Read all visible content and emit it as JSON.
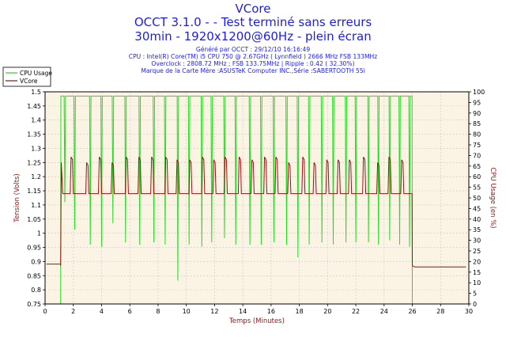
{
  "header": {
    "title": "VCore",
    "subtitle1": "OCCT 3.1.0 -  - Test terminé sans erreurs",
    "subtitle2": "30min - 1920x1200@60Hz - plein écran",
    "info1": "Généré par OCCT : 29/12/10 16:16:49",
    "info2": "CPU : Intel(R) Core(TM) i5 CPU 750 @ 2.67GHz ( Lynnfield ) 2666 MHz FSB 133MHz",
    "info3": "Overclock : 2808.72 MHz ; FSB 133.75MHz | Ripple : 0.42 ( 32.30%)",
    "info4": "Marque de la Carte Mère :ASUSTeK Computer INC.,Série :SABERTOOTH 55i"
  },
  "colors": {
    "cpu": "#22dd22",
    "vcore": "#991111",
    "plot_bg": "#fbf4e4",
    "grid": "#c8c8c8",
    "title": "#1a1aff",
    "axis_label": "#a01414"
  },
  "chart_data": {
    "type": "line",
    "xlabel": "Temps (Minutes)",
    "ylabel": "Tension (Volts)",
    "y2label": "CPU Usage (en %)",
    "xlim": [
      0,
      30
    ],
    "ylim": [
      0.75,
      1.5
    ],
    "y2lim": [
      0,
      100
    ],
    "x_ticks": [
      "0",
      "2",
      "4",
      "6",
      "8",
      "10",
      "12",
      "14",
      "16",
      "18",
      "20",
      "22",
      "24",
      "26",
      "28",
      "30"
    ],
    "y_ticks": [
      "0.75",
      "0.8",
      "0.85",
      "0.9",
      "0.95",
      "1",
      "1.05",
      "1.1",
      "1.15",
      "1.2",
      "1.25",
      "1.3",
      "1.35",
      "1.4",
      "1.45",
      "1.5"
    ],
    "y2_ticks": [
      "0",
      "5",
      "10",
      "15",
      "20",
      "25",
      "30",
      "35",
      "40",
      "45",
      "50",
      "55",
      "60",
      "65",
      "70",
      "75",
      "80",
      "85",
      "90",
      "95",
      "100"
    ],
    "grid": true,
    "legend_position": "top-left",
    "series": [
      {
        "name": "CPU Usage",
        "axis": "right",
        "baseline": 98,
        "idle_value": 0,
        "active_range": [
          1.1,
          26.0
        ],
        "dips_minutes": [
          1.4,
          2.1,
          3.2,
          4.0,
          4.8,
          5.7,
          6.7,
          7.7,
          8.5,
          9.4,
          10.2,
          11.1,
          11.8,
          12.7,
          13.5,
          14.5,
          15.3,
          16.2,
          17.1,
          17.9,
          18.7,
          19.6,
          20.4,
          21.3,
          22.0,
          22.9,
          23.6,
          24.4,
          25.1,
          25.8
        ],
        "dips_values": [
          48,
          35,
          28,
          27,
          38,
          29,
          28,
          29,
          28,
          11,
          28,
          27,
          29,
          31,
          28,
          28,
          28,
          29,
          28,
          22,
          28,
          29,
          28,
          29,
          29,
          29,
          28,
          30,
          28,
          27
        ]
      },
      {
        "name": "VCore",
        "axis": "left",
        "idle_value": 0.885,
        "load_value": 1.14,
        "active_range": [
          1.1,
          26.0
        ],
        "spike_minutes": [
          1.9,
          3.0,
          3.9,
          4.8,
          5.8,
          6.7,
          7.6,
          8.6,
          9.4,
          10.3,
          11.2,
          12.0,
          12.8,
          13.8,
          14.7,
          15.6,
          16.4,
          17.3,
          18.3,
          19.1,
          20.0,
          20.8,
          21.6,
          22.6,
          23.6,
          24.4,
          25.3
        ],
        "spike_values": [
          1.27,
          1.25,
          1.27,
          1.25,
          1.27,
          1.27,
          1.27,
          1.27,
          1.26,
          1.26,
          1.27,
          1.26,
          1.27,
          1.27,
          1.26,
          1.27,
          1.27,
          1.25,
          1.27,
          1.25,
          1.26,
          1.26,
          1.26,
          1.27,
          1.25,
          1.27,
          1.26
        ]
      }
    ]
  }
}
